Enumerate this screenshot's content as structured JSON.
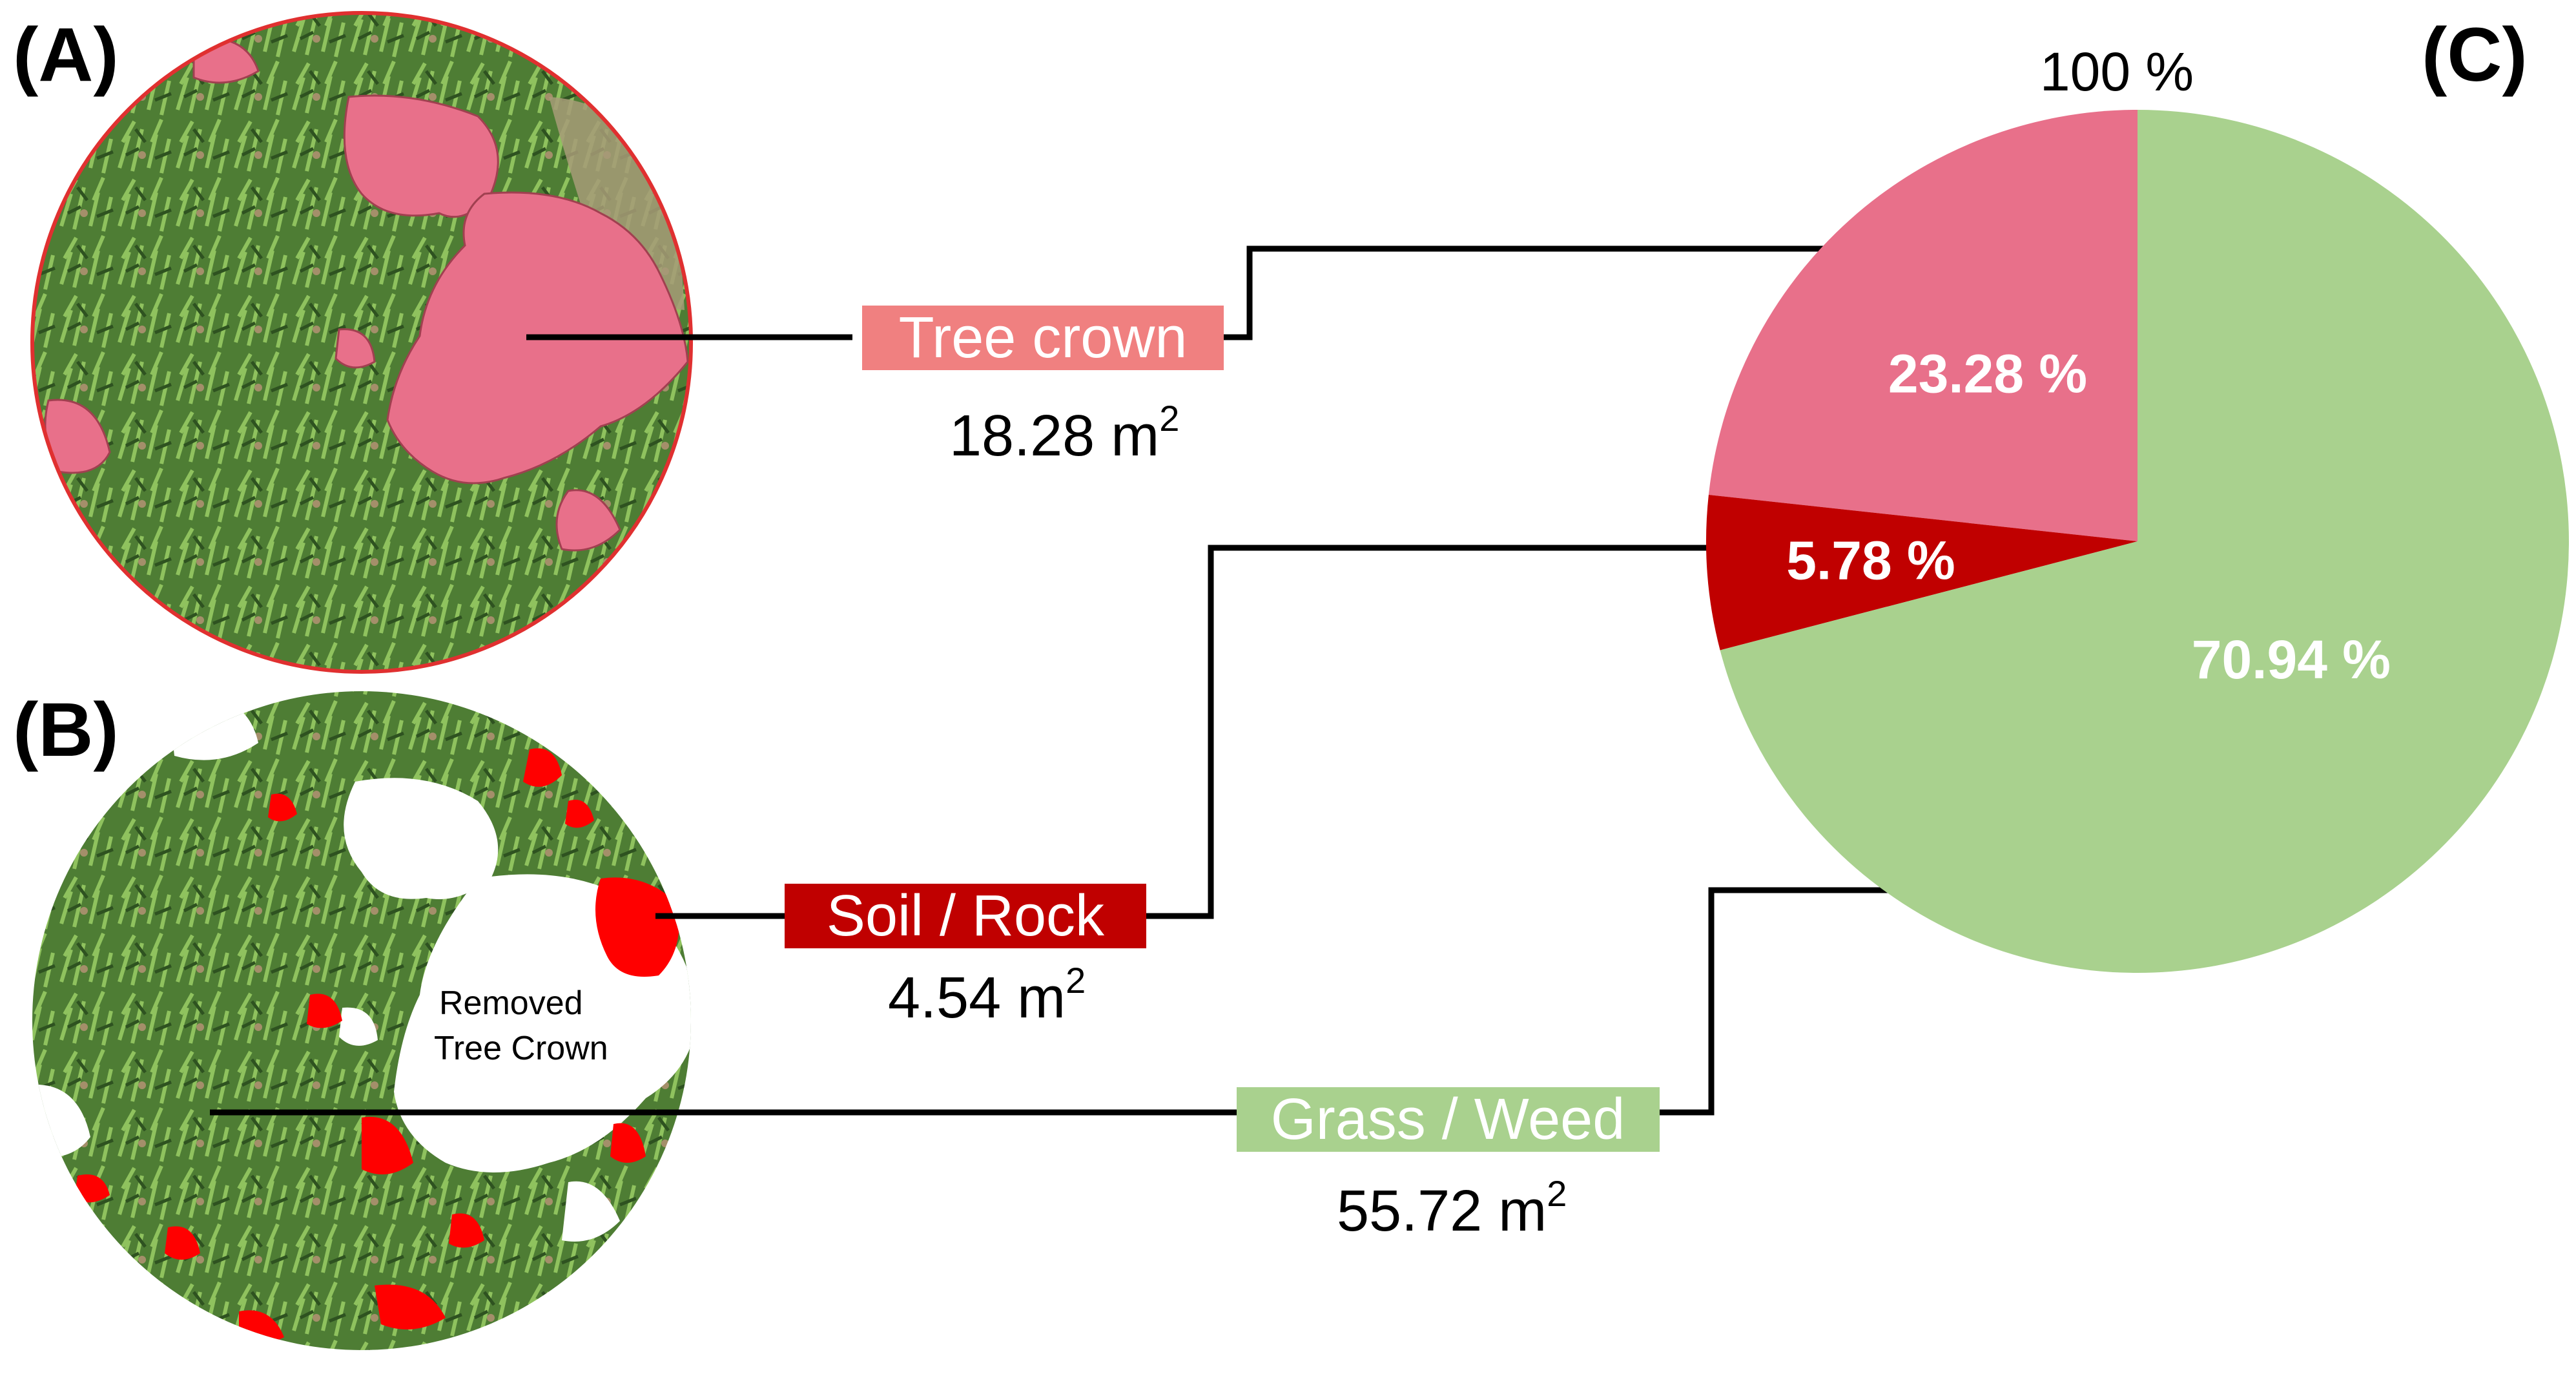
{
  "panels": {
    "a_label": "(A)",
    "b_label": "(B)",
    "c_label": "(C)"
  },
  "classes": [
    {
      "key": "tree",
      "label": "Tree crown",
      "area_value": "18.28 m",
      "area_exp": "2",
      "color": "#f08080"
    },
    {
      "key": "soil",
      "label": "Soil / Rock",
      "area_value": "4.54 m",
      "area_exp": "2",
      "color": "#c00000"
    },
    {
      "key": "grass",
      "label": "Grass / Weed",
      "area_value": "55.72 m",
      "area_exp": "2",
      "color": "#a9d18e"
    }
  ],
  "panel_b_note": {
    "line1": "Removed",
    "line2": "Tree Crown"
  },
  "chart_data": {
    "type": "pie",
    "total_label": "100 %",
    "slices": [
      {
        "name": "Tree crown",
        "value": 23.28,
        "label": "23.28 %",
        "color": "#e8708a"
      },
      {
        "name": "Soil / Rock",
        "value": 5.78,
        "label": "5.78 %",
        "color": "#c00000"
      },
      {
        "name": "Grass / Weed",
        "value": 70.94,
        "label": "70.94 %",
        "color": "#a9d18e"
      }
    ],
    "order": "counterclockwise from top"
  },
  "colors": {
    "vegetation_dark": "#3f6b2a",
    "vegetation_light": "#7fae4f",
    "tree_crown_overlay": "#e8708a",
    "soil_overlay": "#ff0000",
    "circle_outline": "#e03030"
  }
}
